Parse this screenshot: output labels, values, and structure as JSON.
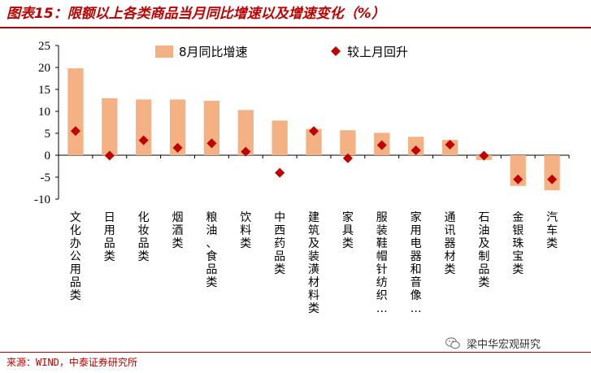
{
  "header": {
    "title": "图表15：限额以上各类商品当月同比增速以及增速变化（%）"
  },
  "footer": {
    "source": "来源：WIND，中泰证券研究所",
    "watermark": "梁中华宏观研究"
  },
  "chart_data": {
    "type": "bar",
    "categories": [
      "文化办公用品类",
      "日用品类",
      "化妆品类",
      "烟酒类",
      "粮油、食品类",
      "饮料类",
      "中西药品类",
      "建筑及装潢材料类",
      "家具类",
      "服装鞋帽针纺织…",
      "家用电器和音像…",
      "通讯器材类",
      "石油及制品类",
      "金银珠宝类",
      "汽车类"
    ],
    "series": [
      {
        "name": "8月同比增速",
        "chart": "bar",
        "color": "#f4b183",
        "values": [
          19.8,
          13.0,
          12.7,
          12.7,
          12.4,
          10.3,
          7.9,
          6.0,
          5.7,
          5.1,
          4.2,
          3.5,
          -1.1,
          -7.0,
          -8.0
        ]
      },
      {
        "name": "较上月回升",
        "chart": "scatter",
        "color": "#c00000",
        "marker": "diamond",
        "values": [
          5.5,
          -0.1,
          3.4,
          1.7,
          2.7,
          0.8,
          -4.0,
          5.5,
          -0.7,
          2.3,
          1.1,
          2.4,
          -0.1,
          -5.5,
          -5.5
        ]
      }
    ],
    "ylim": [
      -10,
      25
    ],
    "yticks": [
      -10,
      -5,
      0,
      5,
      10,
      15,
      20,
      25
    ],
    "grid": false,
    "legend": "top-center"
  }
}
